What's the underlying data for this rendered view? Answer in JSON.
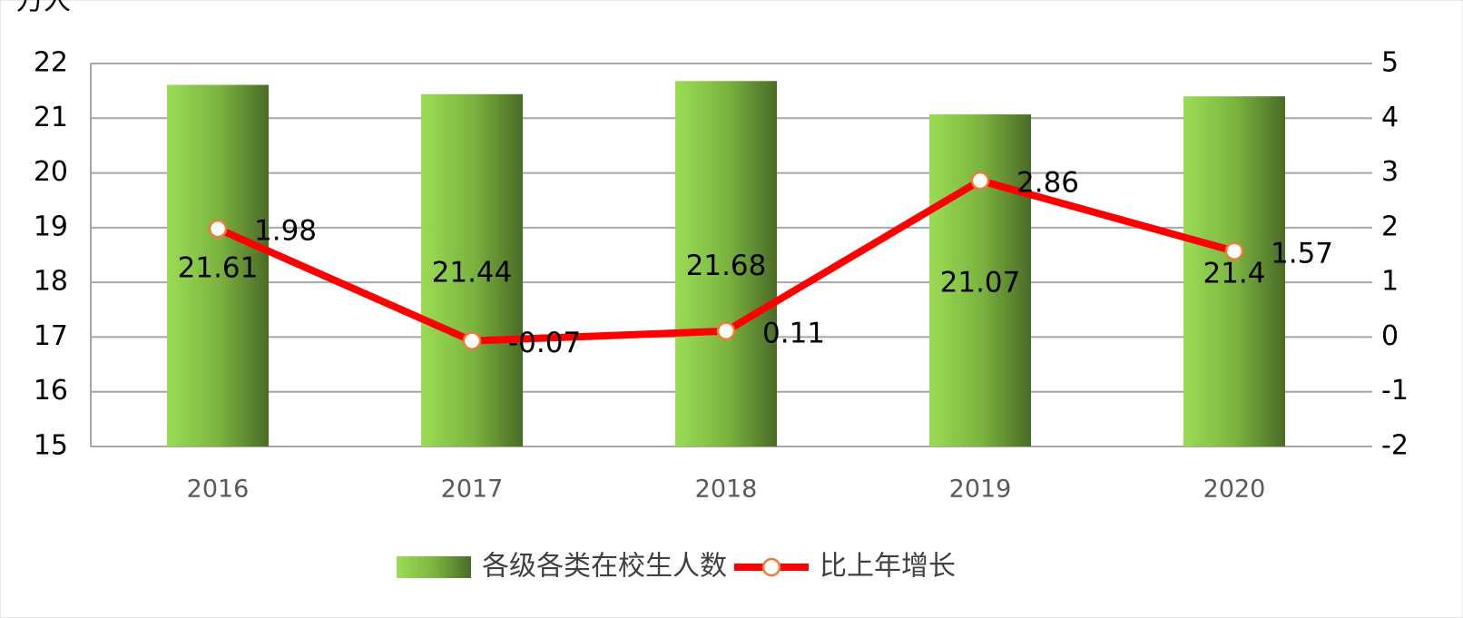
{
  "chart_data": {
    "type": "bar-line",
    "y_unit": "万人",
    "categories": [
      "2016",
      "2017",
      "2018",
      "2019",
      "2020"
    ],
    "series": [
      {
        "name": "各级各类在校生人数",
        "type": "bar",
        "color": "#92d050",
        "values": [
          21.61,
          21.44,
          21.68,
          21.07,
          21.4
        ]
      },
      {
        "name": "比上年增长",
        "type": "line",
        "axis": "y2",
        "color": "#ff0000",
        "values": [
          1.98,
          -0.07,
          0.11,
          2.86,
          1.57
        ]
      }
    ],
    "ylim": [
      15,
      22
    ],
    "yticks": [
      15,
      16,
      17,
      18,
      19,
      20,
      21,
      22
    ],
    "y2lim": [
      -2,
      5
    ],
    "y2ticks": [
      -2,
      -1,
      0,
      1,
      2,
      3,
      4,
      5
    ],
    "grid": true,
    "legend": "bottom"
  }
}
